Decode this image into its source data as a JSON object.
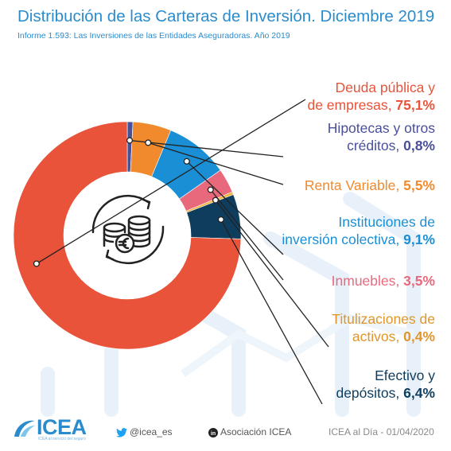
{
  "header": {
    "title": "Distribución de las Carteras de Inversión. Diciembre 2019",
    "subtitle": "Informe 1.593: Las Inversiones de las Entidades Aseguradoras. Año 2019"
  },
  "chart_data": {
    "type": "pie",
    "variant": "donut",
    "start": "top, clockwise",
    "center_icon": "coins-euro-cycle-icon",
    "legend": "none (labels on right with leader lines)",
    "slices": [
      {
        "line1": "Hipotecas y otros",
        "line2": "créditos, ",
        "value_label": "0,8%",
        "value": 0.8,
        "color": "#4a4f9a"
      },
      {
        "line1": "",
        "line2": "Renta Variable, ",
        "value_label": "5,5%",
        "value": 5.5,
        "color": "#f08a2c"
      },
      {
        "line1": "Instituciones de",
        "line2": "inversión colectiva, ",
        "value_label": "9,1%",
        "value": 9.1,
        "color": "#1a8fd6"
      },
      {
        "line1": "",
        "line2": "Inmuebles, ",
        "value_label": "3,5%",
        "value": 3.5,
        "color": "#e9697c"
      },
      {
        "line1": "Titulizaciones de",
        "line2": "activos, ",
        "value_label": "0,4%",
        "value": 0.4,
        "color": "#f2b53c"
      },
      {
        "line1": "Efectivo y",
        "line2": "depósitos, ",
        "value_label": "6,4%",
        "value": 6.4,
        "color": "#0f3d5e"
      },
      {
        "line1": "Deuda pública y",
        "line2": "de empresas, ",
        "value_label": "75,1%",
        "value": 75.1,
        "color": "#e8533a"
      }
    ]
  },
  "footer": {
    "logo": "ICEA",
    "logo_tagline": "ICEA al servicio del seguro",
    "twitter": "@icea_es",
    "linkedin": "Asociación ICEA",
    "date_text": "ICEA al Día - 01/04/2020"
  },
  "colors": {
    "accent": "#2b8ccd",
    "twitter": "#1da1f2",
    "linkedin": "#0a66c2"
  }
}
